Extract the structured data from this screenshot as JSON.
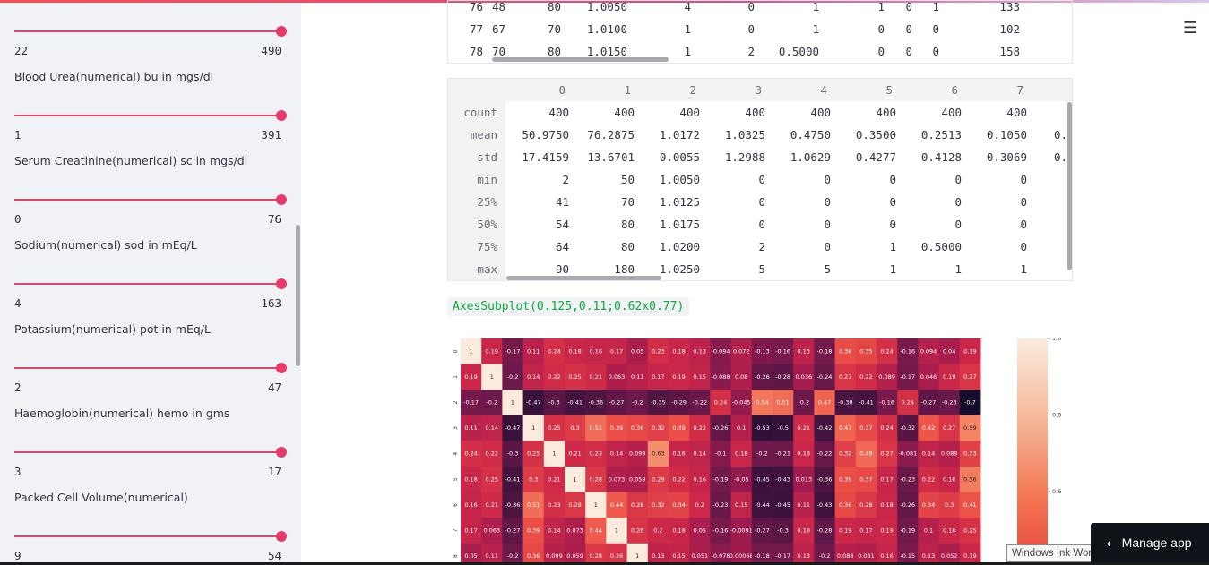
{
  "sidebar": {
    "sliders": [
      {
        "label": "",
        "min": "22",
        "max": "490",
        "value_fraction": 1.0
      },
      {
        "label": "Blood Urea(numerical) bu in mgs/dl",
        "min": "1",
        "max": "391",
        "value_fraction": 1.0
      },
      {
        "label": "Serum Creatinine(numerical) sc in mgs/dl",
        "min": "0",
        "max": "76",
        "value_fraction": 1.0
      },
      {
        "label": "Sodium(numerical) sod in mEq/L",
        "min": "4",
        "max": "163",
        "value_fraction": 1.0
      },
      {
        "label": "Potassium(numerical) pot in mEq/L",
        "min": "2",
        "max": "47",
        "value_fraction": 1.0
      },
      {
        "label": "Haemoglobin(numerical) hemo in gms",
        "min": "3",
        "max": "17",
        "value_fraction": 1.0
      },
      {
        "label": "Packed Cell Volume(numerical)",
        "min": "9",
        "max": "54",
        "value_fraction": 1.0
      }
    ]
  },
  "top_table": {
    "rows": [
      {
        "index": "76",
        "cells": [
          "48",
          "80",
          "1.0050",
          "4",
          "0",
          "1",
          "1",
          "0",
          "1",
          "133"
        ]
      },
      {
        "index": "77",
        "cells": [
          "67",
          "70",
          "1.0100",
          "1",
          "0",
          "1",
          "0",
          "0",
          "0",
          "102"
        ]
      },
      {
        "index": "78",
        "cells": [
          "70",
          "80",
          "1.0150",
          "1",
          "2",
          "0.5000",
          "0",
          "0",
          "0",
          "158"
        ]
      }
    ]
  },
  "describe_table": {
    "columns": [
      "0",
      "1",
      "2",
      "3",
      "4",
      "5",
      "6",
      "7"
    ],
    "rows": [
      {
        "index": "count",
        "cells": [
          "400",
          "400",
          "400",
          "400",
          "400",
          "400",
          "400",
          "400"
        ],
        "overflow": ""
      },
      {
        "index": "mean",
        "cells": [
          "50.9750",
          "76.2875",
          "1.0172",
          "1.0325",
          "0.4750",
          "0.3500",
          "0.2513",
          "0.1050"
        ],
        "overflow": "0."
      },
      {
        "index": "std",
        "cells": [
          "17.4159",
          "13.6701",
          "0.0055",
          "1.2988",
          "1.0629",
          "0.4277",
          "0.4128",
          "0.3069"
        ],
        "overflow": "0."
      },
      {
        "index": "min",
        "cells": [
          "2",
          "50",
          "1.0050",
          "0",
          "0",
          "0",
          "0",
          "0"
        ],
        "overflow": ""
      },
      {
        "index": "25%",
        "cells": [
          "41",
          "70",
          "1.0125",
          "0",
          "0",
          "0",
          "0",
          "0"
        ],
        "overflow": ""
      },
      {
        "index": "50%",
        "cells": [
          "54",
          "80",
          "1.0175",
          "0",
          "0",
          "0",
          "0",
          "0"
        ],
        "overflow": ""
      },
      {
        "index": "75%",
        "cells": [
          "64",
          "80",
          "1.0200",
          "2",
          "0",
          "1",
          "0.5000",
          "0"
        ],
        "overflow": ""
      },
      {
        "index": "max",
        "cells": [
          "90",
          "180",
          "1.0250",
          "5",
          "5",
          "1",
          "1",
          "1"
        ],
        "overflow": ""
      }
    ]
  },
  "axes_output": "AxesSubplot(0.125,0.11;0.62x0.77)",
  "chart_data": {
    "type": "heatmap",
    "row_labels": [
      "0",
      "1",
      "2",
      "3",
      "4",
      "5",
      "6",
      "7",
      "8"
    ],
    "values": [
      [
        "1",
        "0.19",
        "-0.17",
        "0.11",
        "0.24",
        "0.18",
        "0.16",
        "0.17",
        "0.05",
        "0.23",
        "0.18",
        "0.13",
        "-0.094",
        "0.072",
        "-0.13",
        "-0.16",
        "0.13",
        "-0.18",
        "0.38",
        "0.35",
        "0.24",
        "-0.16",
        "0.094",
        "0.04",
        "0.19"
      ],
      [
        "0.19",
        "1",
        "-0.2",
        "0.14",
        "0.22",
        "0.25",
        "0.21",
        "0.063",
        "0.11",
        "0.17",
        "0.19",
        "0.15",
        "-0.088",
        "0.08",
        "-0.26",
        "-0.28",
        "0.036",
        "-0.24",
        "0.27",
        "0.22",
        "0.089",
        "-0.17",
        "0.046",
        "0.19",
        "0.27"
      ],
      [
        "-0.17",
        "-0.2",
        "1",
        "-0.47",
        "-0.3",
        "-0.41",
        "-0.36",
        "-0.27",
        "-0.2",
        "-0.35",
        "-0.29",
        "-0.22",
        "0.24",
        "-0.045",
        "0.54",
        "0.51",
        "-0.2",
        "0.47",
        "-0.38",
        "-0.41",
        "-0.16",
        "0.24",
        "-0.27",
        "-0.23",
        "-0.7"
      ],
      [
        "0.11",
        "0.14",
        "-0.47",
        "1",
        "0.25",
        "0.3",
        "0.51",
        "0.39",
        "0.36",
        "0.32",
        "0.39",
        "0.22",
        "-0.26",
        "0.1",
        "-0.53",
        "-0.5",
        "0.21",
        "-0.42",
        "0.47",
        "0.37",
        "0.24",
        "-0.32",
        "0.42",
        "0.27",
        "0.59"
      ],
      [
        "0.24",
        "0.22",
        "-0.3",
        "0.25",
        "1",
        "0.21",
        "0.23",
        "0.14",
        "0.099",
        "0.63",
        "0.16",
        "0.14",
        "-0.1",
        "0.18",
        "-0.2",
        "-0.21",
        "0.18",
        "-0.22",
        "0.32",
        "0.49",
        "0.27",
        "-0.081",
        "0.14",
        "0.089",
        "0.33"
      ],
      [
        "0.18",
        "0.25",
        "-0.41",
        "0.3",
        "0.21",
        "1",
        "0.28",
        "0.073",
        "0.059",
        "0.29",
        "0.22",
        "0.16",
        "-0.19",
        "-0.05",
        "-0.45",
        "-0.43",
        "0.013",
        "-0.36",
        "0.39",
        "0.37",
        "0.17",
        "-0.23",
        "0.22",
        "0.16",
        "0.56"
      ],
      [
        "0.16",
        "0.21",
        "-0.36",
        "0.51",
        "0.23",
        "0.28",
        "1",
        "0.44",
        "0.28",
        "0.32",
        "0.34",
        "0.2",
        "-0.23",
        "0.15",
        "-0.44",
        "-0.45",
        "0.11",
        "-0.43",
        "0.36",
        "0.28",
        "0.18",
        "-0.26",
        "0.34",
        "0.3",
        "0.41"
      ],
      [
        "0.17",
        "0.063",
        "-0.27",
        "0.39",
        "0.14",
        "0.073",
        "0.44",
        "1",
        "0.26",
        "0.2",
        "0.18",
        "0.05",
        "-0.16",
        "-0.0091",
        "-0.27",
        "-0.3",
        "0.18",
        "-0.28",
        "0.19",
        "0.17",
        "0.19",
        "-0.19",
        "0.1",
        "0.18",
        "0.25"
      ],
      [
        "0.05",
        "0.11",
        "-0.2",
        "0.36",
        "0.099",
        "0.059",
        "0.28",
        "0.26",
        "1",
        "0.13",
        "0.15",
        "0.051",
        "-0.078",
        "0.00068",
        "-0.18",
        "-0.17",
        "0.13",
        "-0.2",
        "0.088",
        "0.081",
        "0.16",
        "-0.15",
        "0.13",
        "0.052",
        "0.19"
      ]
    ],
    "colorbar_ticks": [
      "1.0",
      "0.8",
      "0.6"
    ]
  },
  "ink_workspace": "Windows Ink Workspace",
  "manage_app": {
    "chevron": "‹",
    "label": "Manage app"
  },
  "hamburger": "☰"
}
